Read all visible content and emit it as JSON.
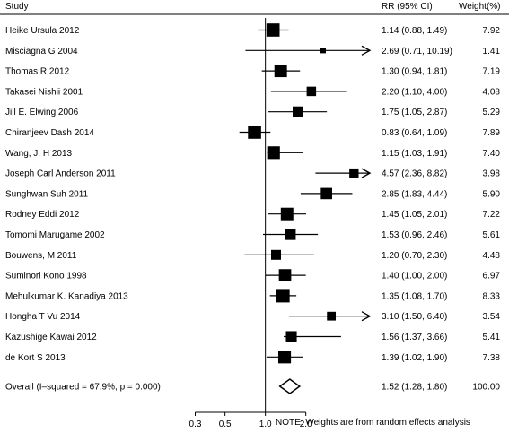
{
  "chart_data": {
    "type": "forest",
    "scale": "log",
    "headers": {
      "study": "Study",
      "rr": "RR (95% CI)",
      "weight": "Weight(%)"
    },
    "studies": [
      {
        "name": "Heike Ursula  2012",
        "rr": 1.14,
        "lo": 0.88,
        "hi": 1.49,
        "rr_text": "1.14 (0.88, 1.49)",
        "weight": 7.92,
        "weight_text": "7.92"
      },
      {
        "name": "Misciagna G  2004",
        "rr": 2.69,
        "lo": 0.71,
        "hi": 10.19,
        "rr_text": "2.69 (0.71, 10.19)",
        "weight": 1.41,
        "weight_text": "1.41"
      },
      {
        "name": "Thomas R  2012",
        "rr": 1.3,
        "lo": 0.94,
        "hi": 1.81,
        "rr_text": "1.30 (0.94, 1.81)",
        "weight": 7.19,
        "weight_text": "7.19"
      },
      {
        "name": "Takasei Nishii  2001",
        "rr": 2.2,
        "lo": 1.1,
        "hi": 4.0,
        "rr_text": "2.20 (1.10, 4.00)",
        "weight": 4.08,
        "weight_text": "4.08"
      },
      {
        "name": "Jill E. Elwing  2006",
        "rr": 1.75,
        "lo": 1.05,
        "hi": 2.87,
        "rr_text": "1.75 (1.05, 2.87)",
        "weight": 5.29,
        "weight_text": "5.29"
      },
      {
        "name": "Chiranjeev Dash  2014",
        "rr": 0.83,
        "lo": 0.64,
        "hi": 1.09,
        "rr_text": "0.83 (0.64, 1.09)",
        "weight": 7.89,
        "weight_text": "7.89"
      },
      {
        "name": "Wang, J. H  2013",
        "rr": 1.15,
        "lo": 1.03,
        "hi": 1.91,
        "rr_text": "1.15 (1.03, 1.91)",
        "weight": 7.4,
        "weight_text": "7.40"
      },
      {
        "name": "Joseph Carl Anderson  2011",
        "rr": 4.57,
        "lo": 2.36,
        "hi": 8.82,
        "rr_text": "4.57 (2.36, 8.82)",
        "weight": 3.98,
        "weight_text": "3.98"
      },
      {
        "name": "Sunghwan Suh  2011",
        "rr": 2.85,
        "lo": 1.83,
        "hi": 4.44,
        "rr_text": "2.85 (1.83, 4.44)",
        "weight": 5.9,
        "weight_text": "5.90"
      },
      {
        "name": "Rodney Eddi  2012",
        "rr": 1.45,
        "lo": 1.05,
        "hi": 2.01,
        "rr_text": "1.45 (1.05, 2.01)",
        "weight": 7.22,
        "weight_text": "7.22"
      },
      {
        "name": "Tomomi Marugame 2002",
        "rr": 1.53,
        "lo": 0.96,
        "hi": 2.46,
        "rr_text": "1.53 (0.96, 2.46)",
        "weight": 5.61,
        "weight_text": "5.61"
      },
      {
        "name": "Bouwens, M  2011",
        "rr": 1.2,
        "lo": 0.7,
        "hi": 2.3,
        "rr_text": "1.20 (0.70, 2.30)",
        "weight": 4.48,
        "weight_text": "4.48"
      },
      {
        "name": "Suminori Kono  1998",
        "rr": 1.4,
        "lo": 1.0,
        "hi": 2.0,
        "rr_text": "1.40 (1.00, 2.00)",
        "weight": 6.97,
        "weight_text": "6.97"
      },
      {
        "name": "Mehulkumar K. Kanadiya  2013",
        "rr": 1.35,
        "lo": 1.08,
        "hi": 1.7,
        "rr_text": "1.35 (1.08, 1.70)",
        "weight": 8.33,
        "weight_text": "8.33"
      },
      {
        "name": "Hongha T Vu  2014",
        "rr": 3.1,
        "lo": 1.5,
        "hi": 6.4,
        "rr_text": "3.10 (1.50, 6.40)",
        "weight": 3.54,
        "weight_text": "3.54"
      },
      {
        "name": "Kazushige Kawai  2012",
        "rr": 1.56,
        "lo": 1.37,
        "hi": 3.66,
        "rr_text": "1.56 (1.37, 3.66)",
        "weight": 5.41,
        "weight_text": "5.41"
      },
      {
        "name": "de Kort S  2013",
        "rr": 1.39,
        "lo": 1.02,
        "hi": 1.9,
        "rr_text": "1.39 (1.02, 1.90)",
        "weight": 7.38,
        "weight_text": "7.38"
      }
    ],
    "overall": {
      "label": "Overall  (I–squared = 67.9%, p = 0.000)",
      "rr": 1.52,
      "lo": 1.28,
      "hi": 1.8,
      "rr_text": "1.52 (1.28, 1.80)",
      "weight_text": "100.00"
    },
    "x_ticks": [
      {
        "value": 0.3,
        "label": "0.3"
      },
      {
        "value": 0.5,
        "label": "0.5"
      },
      {
        "value": 1.0,
        "label": "1.0"
      },
      {
        "value": 2.0,
        "label": "2.0"
      }
    ],
    "null_value": 1.0,
    "xlim": [
      0.24,
      6.0
    ],
    "note": "NOTE: Weights are from random effects analysis"
  }
}
